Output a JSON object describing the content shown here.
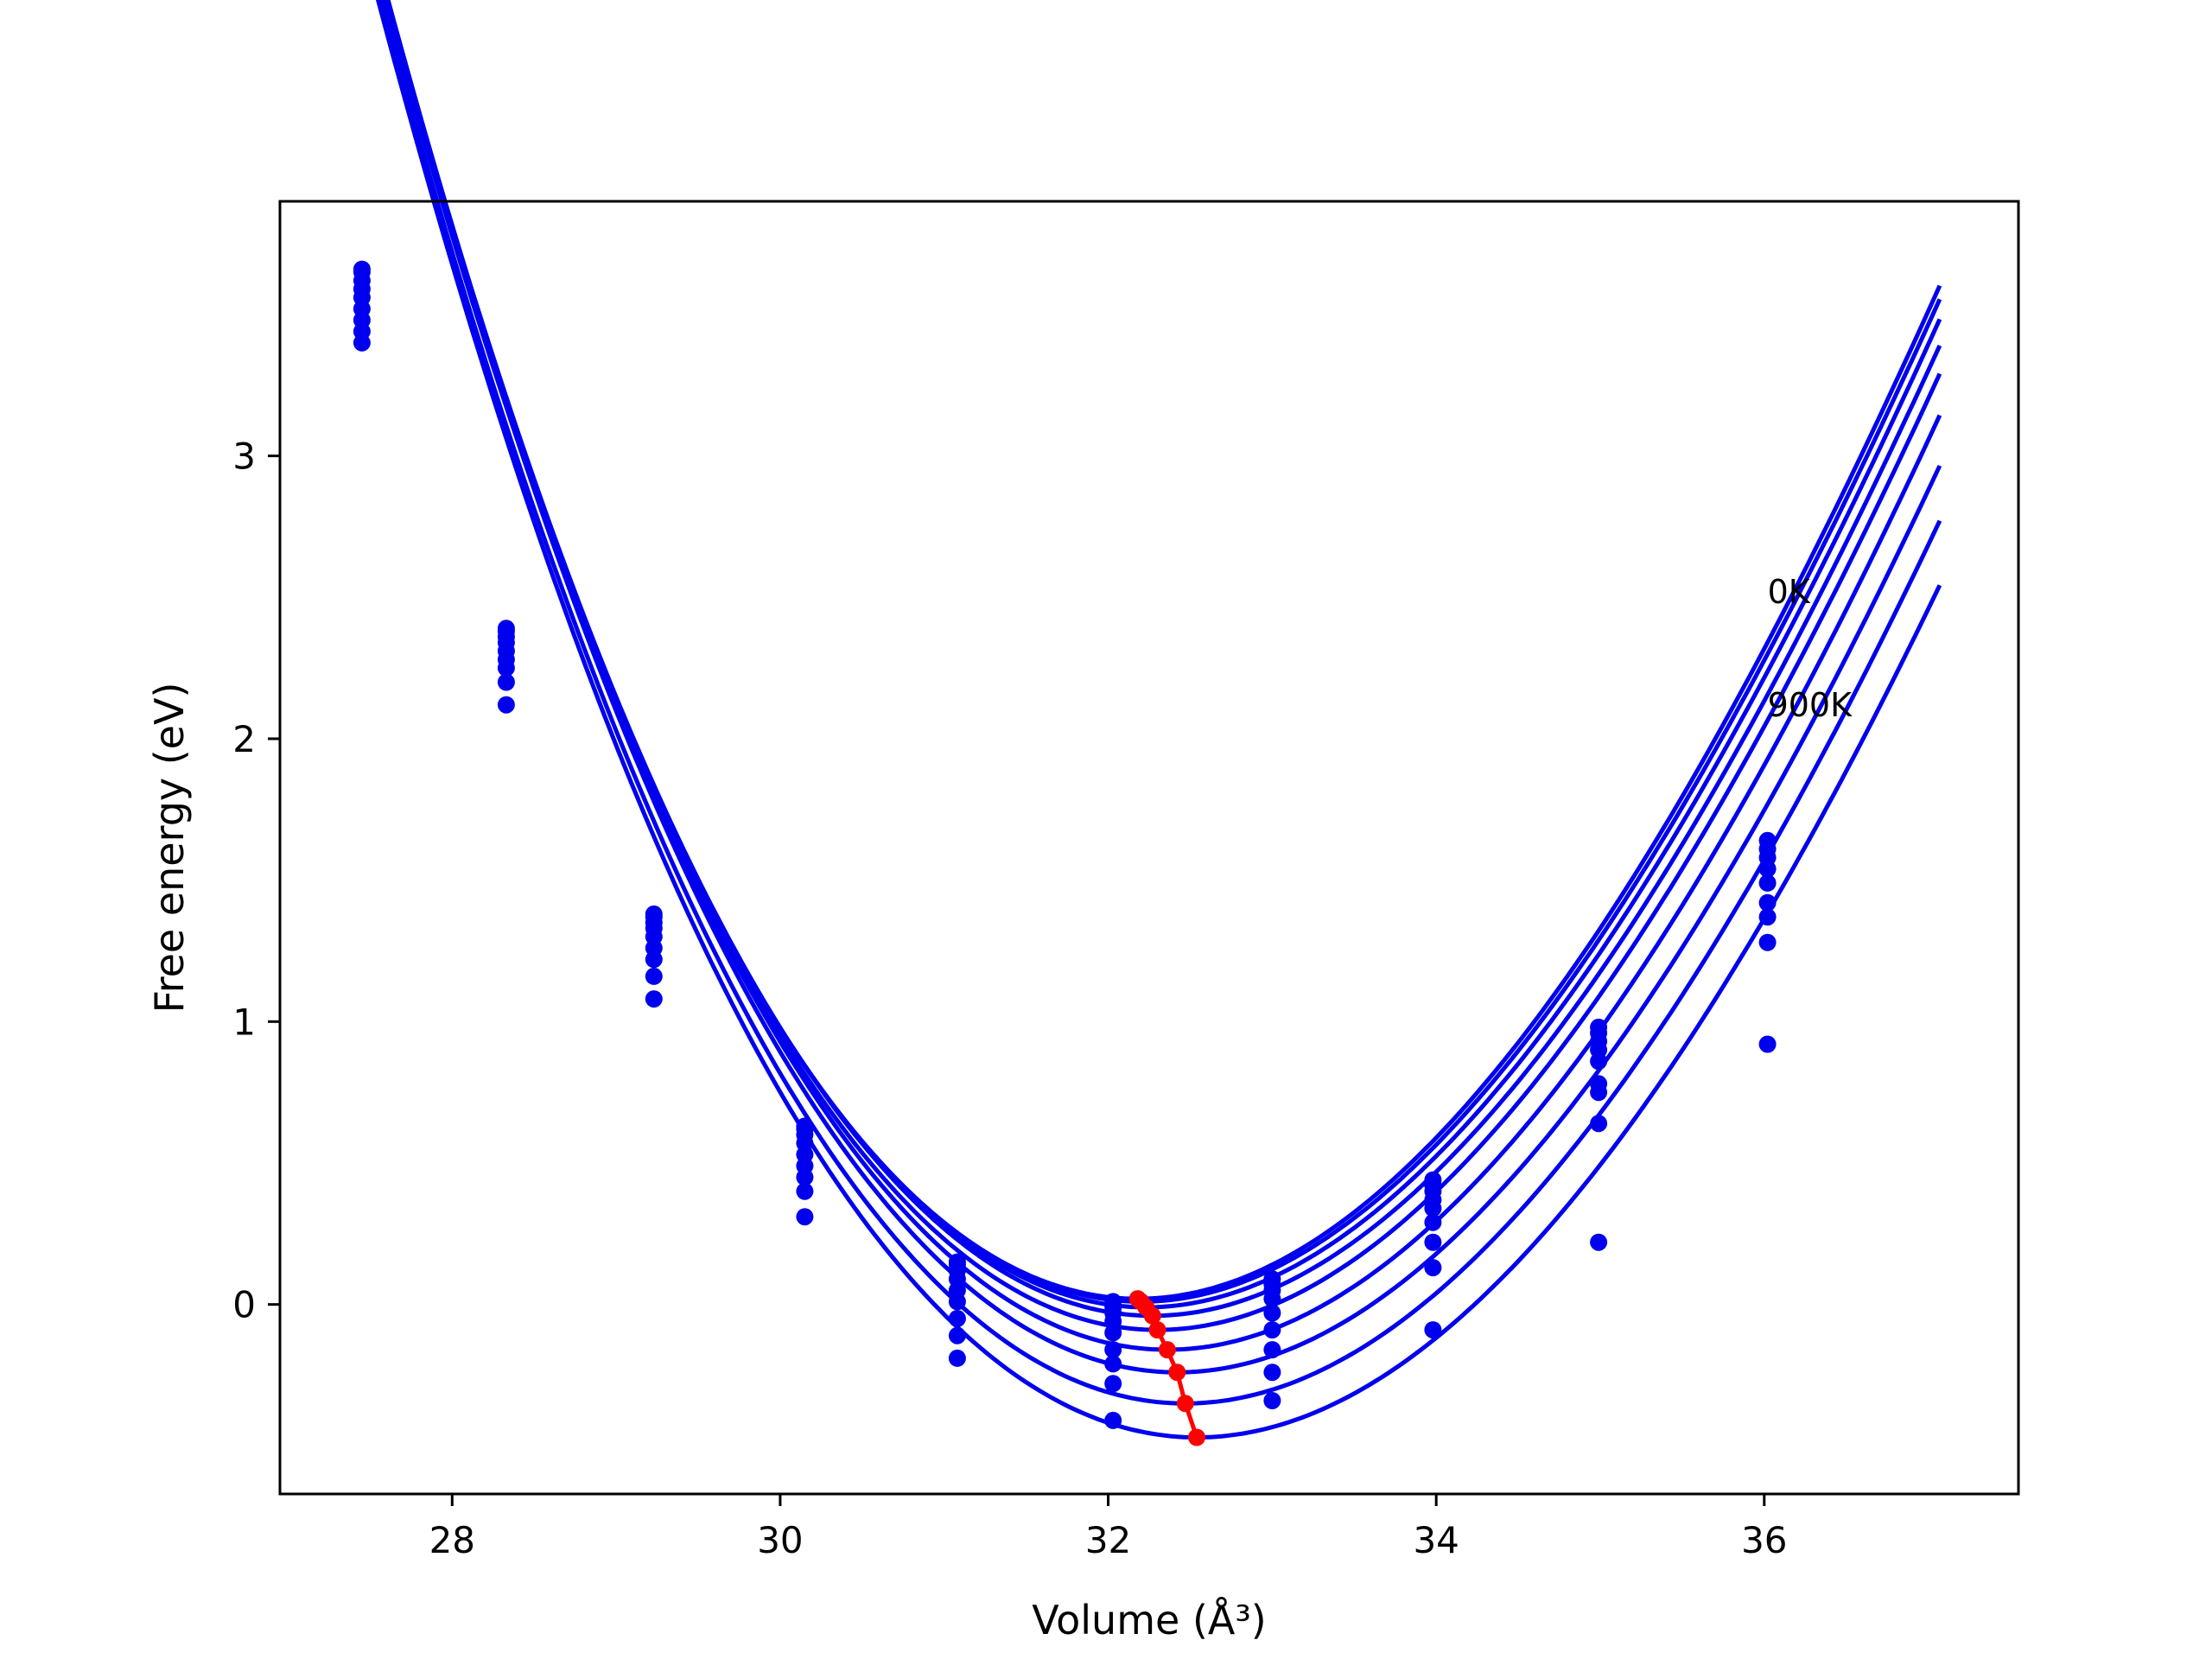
{
  "chart_data": {
    "type": "line",
    "xlabel": "Volume (Å³)",
    "ylabel": "Free energy (eV)",
    "xlim": [
      26.95,
      37.55
    ],
    "ylim": [
      -0.67,
      3.9
    ],
    "xticks": [
      28,
      30,
      32,
      34,
      36
    ],
    "yticks": [
      0,
      1,
      2,
      3
    ],
    "grid": false,
    "legend": "none",
    "colors": {
      "curves": "#0000ee",
      "minima": "#ff0000",
      "frame": "#000000"
    },
    "x_points": [
      27.45,
      28.33,
      29.23,
      30.15,
      31.08,
      32.03,
      33.0,
      33.98,
      34.99,
      36.02
    ],
    "fit_x_range": [
      27.45,
      37.07
    ],
    "series": [
      {
        "name": "0K",
        "points": [
          3.66,
          2.39,
          1.38,
          0.63,
          0.15,
          0.01,
          0.09,
          0.44,
          0.98,
          1.64
        ],
        "fit": {
          "vmin": 32.18,
          "emin": 0.02,
          "a": 0.185,
          "b": 0.0072
        }
      },
      {
        "values": [
          3.65,
          2.38,
          1.37,
          0.62,
          0.14,
          -0.01,
          0.07,
          0.42,
          0.96,
          1.61
        ],
        "fit": {
          "vmin": 32.2,
          "emin": 0.01,
          "a": 0.184,
          "b": 0.0071
        }
      },
      {
        "values": [
          3.62,
          2.36,
          1.35,
          0.6,
          0.12,
          -0.03,
          0.05,
          0.4,
          0.93,
          1.58
        ],
        "fit": {
          "vmin": 32.23,
          "emin": -0.01,
          "a": 0.183,
          "b": 0.007
        }
      },
      {
        "values": [
          3.59,
          2.34,
          1.33,
          0.57,
          0.09,
          -0.06,
          0.02,
          0.37,
          0.9,
          1.54
        ],
        "fit": {
          "vmin": 32.27,
          "emin": -0.04,
          "a": 0.182,
          "b": 0.0069
        }
      },
      {
        "values": [
          3.56,
          2.31,
          1.3,
          0.53,
          0.05,
          -0.1,
          -0.03,
          0.34,
          0.86,
          1.49
        ],
        "fit": {
          "vmin": 32.3,
          "emin": -0.09,
          "a": 0.181,
          "b": 0.0068
        }
      },
      {
        "values": [
          3.52,
          2.28,
          1.26,
          0.49,
          0.01,
          -0.16,
          -0.09,
          0.29,
          0.78,
          1.42
        ],
        "fit": {
          "vmin": 32.36,
          "emin": -0.16,
          "a": 0.18,
          "b": 0.0066
        }
      },
      {
        "values": [
          3.48,
          2.25,
          1.22,
          0.45,
          -0.05,
          -0.21,
          -0.16,
          0.22,
          0.75,
          1.37
        ],
        "fit": {
          "vmin": 32.42,
          "emin": -0.24,
          "a": 0.178,
          "b": 0.0064
        }
      },
      {
        "values": [
          3.44,
          2.2,
          1.16,
          0.4,
          -0.11,
          -0.28,
          -0.24,
          0.13,
          0.64,
          1.28
        ],
        "fit": {
          "vmin": 32.47,
          "emin": -0.35,
          "a": 0.176,
          "b": 0.0062
        }
      },
      {
        "name": "900K",
        "values": [
          3.4,
          2.12,
          1.08,
          0.31,
          -0.19,
          -0.41,
          -0.34,
          -0.09,
          0.22,
          0.92
        ],
        "fit": {
          "vmin": 32.54,
          "emin": -0.47,
          "a": 0.174,
          "b": 0.006
        }
      }
    ],
    "annotations": [
      {
        "text": "0K",
        "x": 36.02,
        "y": 2.48
      },
      {
        "text": "900K",
        "x": 36.02,
        "y": 2.08
      }
    ],
    "minima_line": {
      "x": [
        32.18,
        32.2,
        32.23,
        32.27,
        32.3,
        32.36,
        32.42,
        32.47,
        32.54
      ],
      "y": [
        0.02,
        0.01,
        -0.01,
        -0.04,
        -0.09,
        -0.16,
        -0.24,
        -0.35,
        -0.47
      ]
    }
  }
}
